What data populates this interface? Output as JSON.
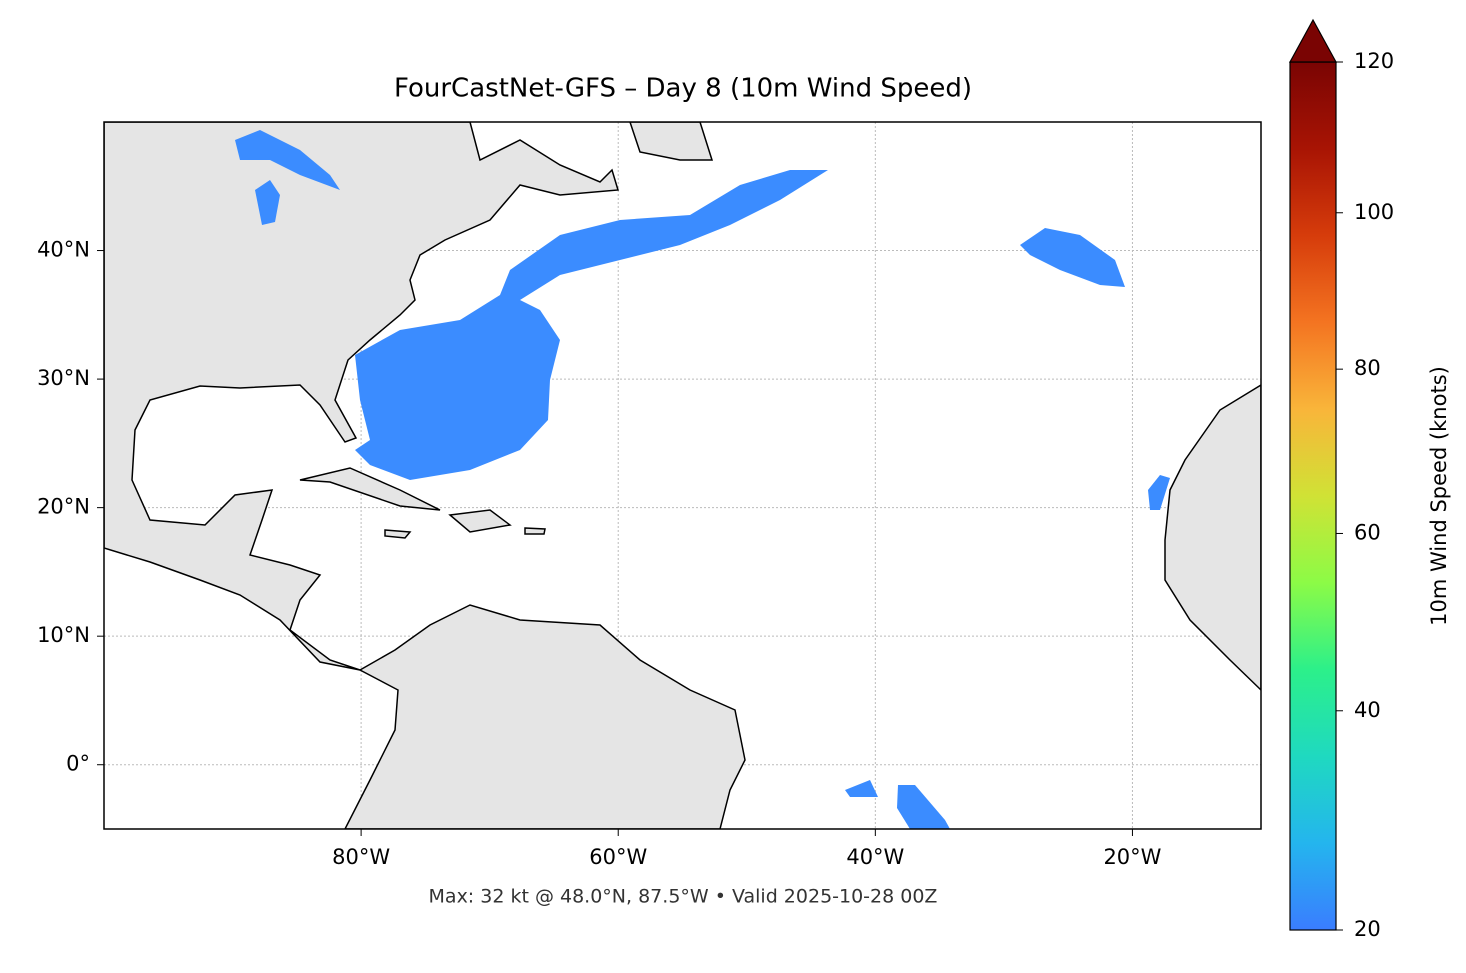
{
  "chart_data": {
    "type": "map",
    "title": "FourCastNet-GFS – Day 8 (10m Wind Speed)",
    "footer": "Max: 32 kt @ 48.0°N, 87.5°W • Valid 2025-10-28 00Z",
    "xlim": [
      -100,
      -10
    ],
    "ylim": [
      -5,
      50
    ],
    "xticks": [
      {
        "value": -80,
        "label": "80°W"
      },
      {
        "value": -60,
        "label": "60°W"
      },
      {
        "value": -40,
        "label": "40°W"
      },
      {
        "value": -20,
        "label": "20°W"
      }
    ],
    "yticks": [
      {
        "value": 0,
        "label": "0°"
      },
      {
        "value": 10,
        "label": "10°N"
      },
      {
        "value": 20,
        "label": "20°N"
      },
      {
        "value": 30,
        "label": "30°N"
      },
      {
        "value": 40,
        "label": "40°N"
      }
    ],
    "grid": true,
    "colorbar": {
      "label": "10m Wind Speed (knots)",
      "lim": [
        20,
        120
      ],
      "ticks": [
        20,
        40,
        60,
        80,
        100,
        120
      ],
      "norm": "power",
      "gamma": 0.855,
      "colors": [
        "#3a7dff",
        "#24b5ee",
        "#1fd9c0",
        "#2cf08a",
        "#8cfb46",
        "#d0e235",
        "#f9b53a",
        "#f47421",
        "#d63c0b",
        "#a81404",
        "#7a0403"
      ],
      "extend": "max"
    }
  }
}
